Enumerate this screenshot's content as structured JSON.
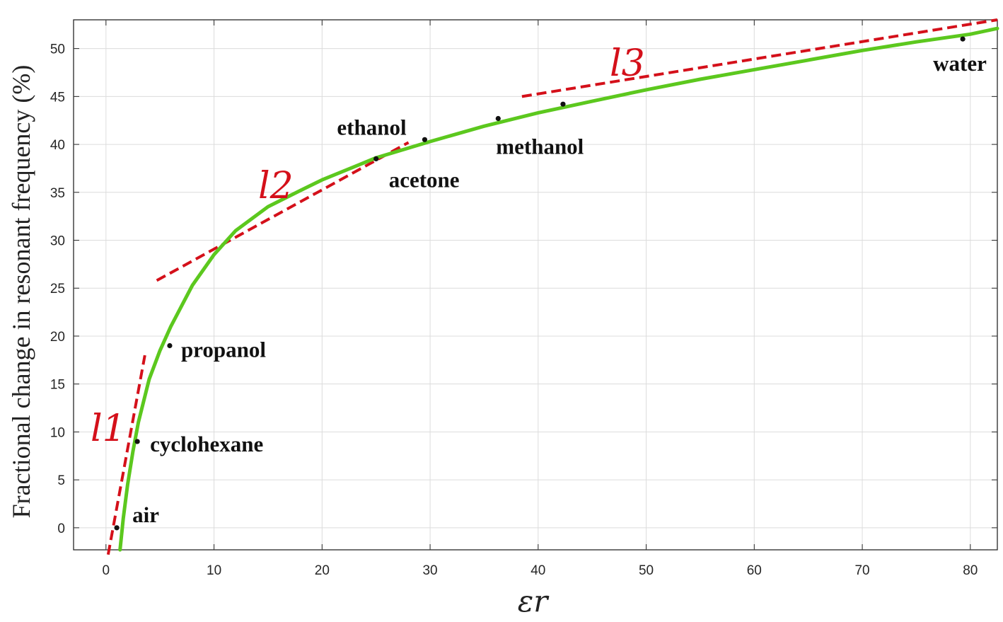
{
  "chart_data": {
    "type": "line",
    "xlabel": "εr",
    "ylabel": "Fractional change in resonant frequency (%)",
    "xlim": [
      -3,
      82.5
    ],
    "ylim": [
      -2.3,
      53
    ],
    "xticks": [
      0,
      10,
      20,
      30,
      40,
      50,
      60,
      70,
      80
    ],
    "yticks": [
      0,
      5,
      10,
      15,
      20,
      25,
      30,
      35,
      40,
      45,
      50
    ],
    "grid": true,
    "fit_curve": {
      "color": "#5cc81e",
      "points": [
        [
          1.3,
          -2.3
        ],
        [
          1.6,
          1
        ],
        [
          2,
          4.5
        ],
        [
          2.5,
          8
        ],
        [
          3,
          11
        ],
        [
          4,
          15.5
        ],
        [
          5,
          18.5
        ],
        [
          6,
          21
        ],
        [
          8,
          25.3
        ],
        [
          10,
          28.5
        ],
        [
          12,
          31
        ],
        [
          15,
          33.5
        ],
        [
          18,
          35.2
        ],
        [
          20,
          36.3
        ],
        [
          25,
          38.6
        ],
        [
          30,
          40.3
        ],
        [
          35,
          41.9
        ],
        [
          40,
          43.3
        ],
        [
          45,
          44.5
        ],
        [
          50,
          45.7
        ],
        [
          55,
          46.8
        ],
        [
          60,
          47.8
        ],
        [
          65,
          48.8
        ],
        [
          70,
          49.8
        ],
        [
          75,
          50.7
        ],
        [
          80,
          51.5
        ],
        [
          82.5,
          52.1
        ]
      ]
    },
    "measured_points": [
      {
        "label": "air",
        "x": 1,
        "y": 0
      },
      {
        "label": "cyclohexane",
        "x": 2.9,
        "y": 9
      },
      {
        "label": "propanol",
        "x": 5.9,
        "y": 19
      },
      {
        "label": "acetone",
        "x": 25,
        "y": 38.5
      },
      {
        "label": "ethanol",
        "x": 29.5,
        "y": 40.5
      },
      {
        "label": "methanol",
        "x": 36.3,
        "y": 42.7
      },
      {
        "label": "",
        "x": 42.3,
        "y": 44.2
      },
      {
        "label": "water",
        "x": 79.3,
        "y": 51
      }
    ],
    "tangent_lines": [
      {
        "name": "l1",
        "color": "#d4101a",
        "from": [
          0.2,
          -2.8
        ],
        "to": [
          3.6,
          18
        ]
      },
      {
        "name": "l2",
        "color": "#d4101a",
        "from": [
          4.7,
          25.8
        ],
        "to": [
          28,
          40.2
        ]
      },
      {
        "name": "l3",
        "color": "#d4101a",
        "from": [
          38.5,
          45
        ],
        "to": [
          82.5,
          53
        ]
      }
    ]
  }
}
